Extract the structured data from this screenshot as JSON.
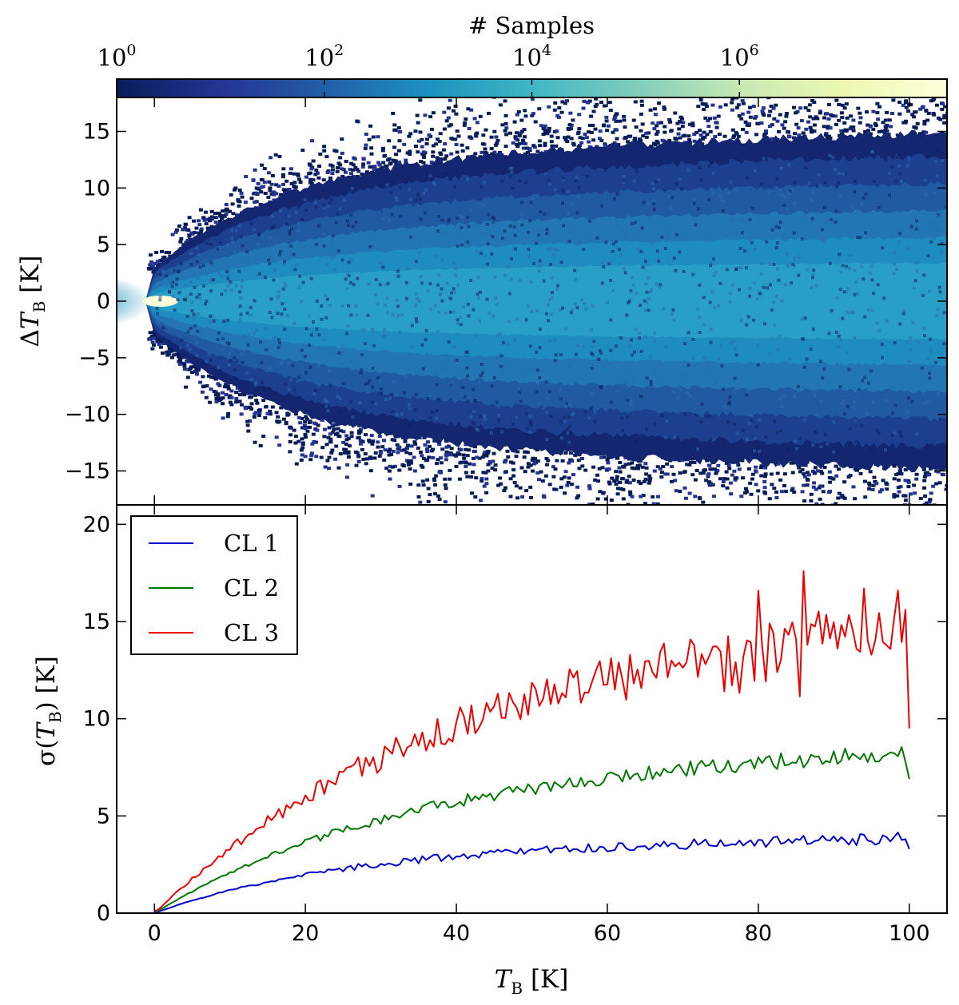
{
  "chart_data": [
    {
      "type": "heatmap",
      "title": "",
      "colorbar": {
        "label": "# Samples",
        "scale": "log",
        "range": [
          1,
          100000000
        ],
        "ticks": [
          {
            "value": 1,
            "base": "10",
            "exp": "0"
          },
          {
            "value": 100,
            "base": "10",
            "exp": "2"
          },
          {
            "value": 10000,
            "base": "10",
            "exp": "4"
          },
          {
            "value": 1000000,
            "base": "10",
            "exp": "6"
          }
        ],
        "colormap": [
          "#081d58",
          "#253494",
          "#225ea8",
          "#1d91c0",
          "#41b6c4",
          "#7fcdbb",
          "#c7e9b4",
          "#edf8b1",
          "#ffffd9"
        ]
      },
      "xlim": [
        -5,
        105
      ],
      "ylim": [
        -18,
        18
      ],
      "yticks": [
        -15,
        -10,
        -5,
        0,
        5,
        10,
        15
      ],
      "ytick_labels": [
        "−15",
        "−10",
        "−5",
        "0",
        "5",
        "10",
        "15"
      ],
      "xticks": [
        0,
        20,
        40,
        60,
        80,
        100
      ],
      "ylabel": {
        "prefix": "Δ",
        "var": "T",
        "sub": "B",
        "unit": " [K]"
      },
      "description_note": "2D histogram of brightness temperature differences; dense core near T_B = 0, spread widening with T_B"
    },
    {
      "type": "line",
      "xlim": [
        -5,
        105
      ],
      "ylim": [
        0,
        21
      ],
      "xticks": [
        0,
        20,
        40,
        60,
        80,
        100
      ],
      "xtick_labels": [
        "0",
        "20",
        "40",
        "60",
        "80",
        "100"
      ],
      "yticks": [
        0,
        5,
        10,
        15,
        20
      ],
      "ytick_labels": [
        "0",
        "5",
        "10",
        "15",
        "20"
      ],
      "xlabel": {
        "var": "T",
        "sub": "B",
        "unit": " [K]"
      },
      "ylabel": {
        "prefix": "σ(",
        "var": "T",
        "sub": "B",
        "unit": ") [K]"
      },
      "legend_position": "top-left",
      "series": [
        {
          "name": "CL 1",
          "color": "#0000cc",
          "amplitude": 3.4,
          "scale": 25,
          "noise": 0.12
        },
        {
          "name": "CL 2",
          "color": "#007700",
          "amplitude": 7.5,
          "scale": 33,
          "noise": 0.18
        },
        {
          "name": "CL 3",
          "color": "#ee0000",
          "amplitude": 14.0,
          "scale": 40,
          "noise": 0.5
        }
      ],
      "notable_points": {
        "CL 3": [
          [
            86,
            17.6
          ],
          [
            94,
            16.7
          ],
          [
            98.5,
            16.6
          ],
          [
            100,
            9.5
          ]
        ],
        "CL 2": [
          [
            94,
            8.2
          ],
          [
            100,
            6.9
          ]
        ],
        "CL 1": [
          [
            96,
            3.6
          ],
          [
            100,
            3.3
          ]
        ]
      }
    }
  ]
}
